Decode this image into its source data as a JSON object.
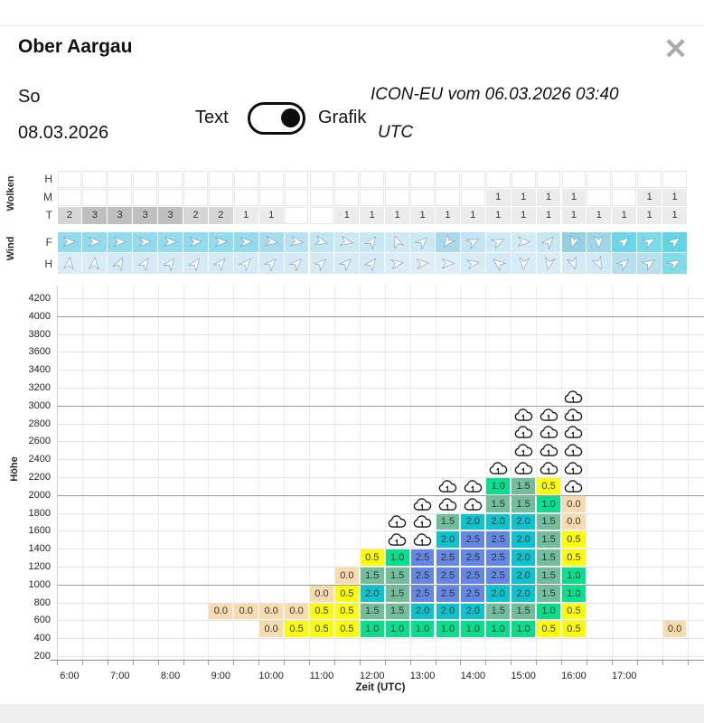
{
  "header": {
    "title": "Ober Aargau",
    "close": "✕"
  },
  "subheader": {
    "day": "So",
    "date": "08.03.2026",
    "toggle_left": "Text",
    "toggle_right": "Grafik",
    "model_line1": "ICON-EU vom 06.03.2026 03:40",
    "model_line2": "UTC"
  },
  "wolken": {
    "label": "Wolken",
    "value_colors": {
      "1": "#ececec",
      "2": "#d6d6d6",
      "3": "#bfbfbf"
    },
    "rows": [
      {
        "label": "H",
        "values": [
          null,
          null,
          null,
          null,
          null,
          null,
          null,
          null,
          null,
          null,
          null,
          null,
          null,
          null,
          null,
          null,
          null,
          null,
          null,
          null,
          null,
          null,
          null,
          null,
          null
        ]
      },
      {
        "label": "M",
        "values": [
          null,
          null,
          null,
          null,
          null,
          null,
          null,
          null,
          null,
          null,
          null,
          null,
          null,
          null,
          null,
          null,
          null,
          1,
          1,
          1,
          1,
          null,
          null,
          1,
          1
        ]
      },
      {
        "label": "T",
        "values": [
          2,
          3,
          3,
          3,
          3,
          2,
          2,
          1,
          1,
          null,
          null,
          1,
          1,
          1,
          1,
          1,
          1,
          1,
          1,
          1,
          1,
          1,
          1,
          1,
          1
        ]
      }
    ]
  },
  "wind": {
    "label": "Wind",
    "rows": [
      {
        "label": "F",
        "cells": [
          {
            "d": 0,
            "c": "#8edcee"
          },
          {
            "d": 0,
            "c": "#8edcee"
          },
          {
            "d": 0,
            "c": "#8edcee"
          },
          {
            "d": 0,
            "c": "#8edcee"
          },
          {
            "d": 0,
            "c": "#8edcee"
          },
          {
            "d": 0,
            "c": "#8edcee"
          },
          {
            "d": 0,
            "c": "#8edcee"
          },
          {
            "d": 0,
            "c": "#8edcee"
          },
          {
            "d": 8,
            "c": "#a6dcef"
          },
          {
            "d": 10,
            "c": "#b7e2f1"
          },
          {
            "d": 14,
            "c": "#c1e6f3"
          },
          {
            "d": 10,
            "c": "#cbe9f5"
          },
          {
            "d": -55,
            "c": "#c6e7f4"
          },
          {
            "d": -110,
            "c": "#cfeaf6"
          },
          {
            "d": -45,
            "c": "#cbe9f5"
          },
          {
            "d": 130,
            "c": "#a9d9ec"
          },
          {
            "d": -30,
            "c": "#c1e5f3"
          },
          {
            "d": -25,
            "c": "#cde9f5"
          },
          {
            "d": 2,
            "c": "#d2ebf6"
          },
          {
            "d": -50,
            "c": "#c6e7f4"
          },
          {
            "d": 105,
            "c": "#93d0e6"
          },
          {
            "d": 85,
            "c": "#9dd5e9"
          },
          {
            "d": -42,
            "c": "#68d7e9"
          },
          {
            "d": -28,
            "c": "#7adbec"
          },
          {
            "d": -38,
            "c": "#5fd5e8"
          }
        ]
      },
      {
        "label": "H",
        "cells": [
          {
            "d": -85,
            "c": "#d9edf8"
          },
          {
            "d": -85,
            "c": "#d9edf8"
          },
          {
            "d": -62,
            "c": "#d4eaf6"
          },
          {
            "d": -57,
            "c": "#d4eaf6"
          },
          {
            "d": -55,
            "c": "#d4eaf6"
          },
          {
            "d": -53,
            "c": "#d4eaf6"
          },
          {
            "d": -50,
            "c": "#d4eaf6"
          },
          {
            "d": -48,
            "c": "#d4eaf6"
          },
          {
            "d": -46,
            "c": "#d4eaf6"
          },
          {
            "d": -45,
            "c": "#d4eaf6"
          },
          {
            "d": -43,
            "c": "#d4eaf6"
          },
          {
            "d": -45,
            "c": "#d6ebf7"
          },
          {
            "d": -52,
            "c": "#d4eaf6"
          },
          {
            "d": -8,
            "c": "#daedf8"
          },
          {
            "d": -5,
            "c": "#ddeef8"
          },
          {
            "d": -2,
            "c": "#ddeef8"
          },
          {
            "d": -12,
            "c": "#d8ecf7"
          },
          {
            "d": -140,
            "c": "#d4eaf6"
          },
          {
            "d": 95,
            "c": "#d8ecf7"
          },
          {
            "d": 102,
            "c": "#d8ecf7"
          },
          {
            "d": 72,
            "c": "#d4eaf6"
          },
          {
            "d": 66,
            "c": "#cfe9f5"
          },
          {
            "d": -40,
            "c": "#b7e1f1"
          },
          {
            "d": -34,
            "c": "#b7e1f1"
          },
          {
            "d": -30,
            "c": "#7edcec"
          }
        ]
      }
    ]
  },
  "chart_data": {
    "type": "heatmap",
    "title": "",
    "xlabel": "Zeit (UTC)",
    "ylabel": "Höhe",
    "x_hour_labels": [
      "6:00",
      "7:00",
      "8:00",
      "9:00",
      "10:00",
      "11:00",
      "12:00",
      "13:00",
      "14:00",
      "15:00",
      "16:00",
      "17:00"
    ],
    "col_times": [
      "6:00",
      "6:30",
      "7:00",
      "7:30",
      "8:00",
      "8:30",
      "9:00",
      "9:30",
      "10:00",
      "10:30",
      "11:00",
      "11:30",
      "12:00",
      "12:30",
      "13:00",
      "13:30",
      "14:00",
      "14:30",
      "15:00",
      "15:30",
      "16:00",
      "16:30",
      "17:00",
      "17:30",
      "18:00"
    ],
    "y_ticks": [
      200,
      400,
      600,
      800,
      1000,
      1200,
      1400,
      1600,
      1800,
      2000,
      2200,
      2400,
      2600,
      2800,
      3000,
      3200,
      3400,
      3600,
      3800,
      4000,
      4200
    ],
    "ylim": [
      200,
      4200
    ],
    "grid": true,
    "value_colors": {
      "0.0": "#f8dcae",
      "0.5": "#fcfc03",
      "1.0": "#06e08c",
      "1.5": "#72bd9c",
      "2.0": "#0cc4cd",
      "2.5": "#6387e2"
    },
    "cloud_symbol": "cloud-with-updraft-icon",
    "bands": [
      {
        "h_low": 3000,
        "cells": [
          {
            "col": 20,
            "cloud": true
          }
        ]
      },
      {
        "h_low": 2800,
        "cells": [
          {
            "col": 18,
            "cloud": true
          },
          {
            "col": 19,
            "cloud": true
          },
          {
            "col": 20,
            "cloud": true
          }
        ]
      },
      {
        "h_low": 2600,
        "cells": [
          {
            "col": 18,
            "cloud": true
          },
          {
            "col": 19,
            "cloud": true
          },
          {
            "col": 20,
            "cloud": true
          }
        ]
      },
      {
        "h_low": 2400,
        "cells": [
          {
            "col": 18,
            "cloud": true
          },
          {
            "col": 19,
            "cloud": true
          },
          {
            "col": 20,
            "cloud": true
          }
        ]
      },
      {
        "h_low": 2200,
        "cells": [
          {
            "col": 17,
            "cloud": true
          },
          {
            "col": 18,
            "cloud": true
          },
          {
            "col": 19,
            "cloud": true
          },
          {
            "col": 20,
            "cloud": true
          }
        ]
      },
      {
        "h_low": 2000,
        "cells": [
          {
            "col": 15,
            "cloud": true
          },
          {
            "col": 16,
            "cloud": true
          },
          {
            "col": 17,
            "v": "1.0"
          },
          {
            "col": 18,
            "v": "1.5"
          },
          {
            "col": 19,
            "v": "0.5"
          },
          {
            "col": 20,
            "cloud": true
          }
        ]
      },
      {
        "h_low": 1800,
        "cells": [
          {
            "col": 14,
            "cloud": true
          },
          {
            "col": 15,
            "cloud": true
          },
          {
            "col": 16,
            "cloud": true
          },
          {
            "col": 17,
            "v": "1.5"
          },
          {
            "col": 18,
            "v": "1.5"
          },
          {
            "col": 19,
            "v": "1.0"
          },
          {
            "col": 20,
            "v": "0.0"
          }
        ]
      },
      {
        "h_low": 1600,
        "cells": [
          {
            "col": 13,
            "cloud": true
          },
          {
            "col": 14,
            "cloud": true
          },
          {
            "col": 15,
            "v": "1.5"
          },
          {
            "col": 16,
            "v": "2.0"
          },
          {
            "col": 17,
            "v": "2.0"
          },
          {
            "col": 18,
            "v": "2.0"
          },
          {
            "col": 19,
            "v": "1.5"
          },
          {
            "col": 20,
            "v": "0.0"
          }
        ]
      },
      {
        "h_low": 1400,
        "cells": [
          {
            "col": 13,
            "cloud": true
          },
          {
            "col": 14,
            "cloud": true
          },
          {
            "col": 15,
            "v": "2.0"
          },
          {
            "col": 16,
            "v": "2.5"
          },
          {
            "col": 17,
            "v": "2.5"
          },
          {
            "col": 18,
            "v": "2.0"
          },
          {
            "col": 19,
            "v": "1.5"
          },
          {
            "col": 20,
            "v": "0.5"
          }
        ]
      },
      {
        "h_low": 1200,
        "cells": [
          {
            "col": 12,
            "v": "0.5"
          },
          {
            "col": 13,
            "v": "1.0"
          },
          {
            "col": 14,
            "v": "2.5"
          },
          {
            "col": 15,
            "v": "2.5"
          },
          {
            "col": 16,
            "v": "2.5"
          },
          {
            "col": 17,
            "v": "2.5"
          },
          {
            "col": 18,
            "v": "2.0"
          },
          {
            "col": 19,
            "v": "1.5"
          },
          {
            "col": 20,
            "v": "0.5"
          }
        ]
      },
      {
        "h_low": 1000,
        "cells": [
          {
            "col": 11,
            "v": "0.0"
          },
          {
            "col": 12,
            "v": "1.5"
          },
          {
            "col": 13,
            "v": "1.5"
          },
          {
            "col": 14,
            "v": "2.5"
          },
          {
            "col": 15,
            "v": "2.5"
          },
          {
            "col": 16,
            "v": "2.5"
          },
          {
            "col": 17,
            "v": "2.5"
          },
          {
            "col": 18,
            "v": "2.0"
          },
          {
            "col": 19,
            "v": "1.5"
          },
          {
            "col": 20,
            "v": "1.0"
          }
        ]
      },
      {
        "h_low": 800,
        "cells": [
          {
            "col": 10,
            "v": "0.0"
          },
          {
            "col": 11,
            "v": "0.5"
          },
          {
            "col": 12,
            "v": "2.0"
          },
          {
            "col": 13,
            "v": "1.5"
          },
          {
            "col": 14,
            "v": "2.5"
          },
          {
            "col": 15,
            "v": "2.5"
          },
          {
            "col": 16,
            "v": "2.5"
          },
          {
            "col": 17,
            "v": "2.0"
          },
          {
            "col": 18,
            "v": "2.0"
          },
          {
            "col": 19,
            "v": "1.5"
          },
          {
            "col": 20,
            "v": "1.0"
          }
        ]
      },
      {
        "h_low": 600,
        "cells": [
          {
            "col": 6,
            "v": "0.0"
          },
          {
            "col": 7,
            "v": "0.0"
          },
          {
            "col": 8,
            "v": "0.0"
          },
          {
            "col": 9,
            "v": "0.0"
          },
          {
            "col": 10,
            "v": "0.5"
          },
          {
            "col": 11,
            "v": "0.5"
          },
          {
            "col": 12,
            "v": "1.5"
          },
          {
            "col": 13,
            "v": "1.5"
          },
          {
            "col": 14,
            "v": "2.0"
          },
          {
            "col": 15,
            "v": "2.0"
          },
          {
            "col": 16,
            "v": "2.0"
          },
          {
            "col": 17,
            "v": "1.5"
          },
          {
            "col": 18,
            "v": "1.5"
          },
          {
            "col": 19,
            "v": "1.0"
          },
          {
            "col": 20,
            "v": "0.5"
          }
        ]
      },
      {
        "h_low": 400,
        "cells": [
          {
            "col": 8,
            "v": "0.0"
          },
          {
            "col": 9,
            "v": "0.5"
          },
          {
            "col": 10,
            "v": "0.5"
          },
          {
            "col": 11,
            "v": "0.5"
          },
          {
            "col": 12,
            "v": "1.0"
          },
          {
            "col": 13,
            "v": "1.0"
          },
          {
            "col": 14,
            "v": "1.0"
          },
          {
            "col": 15,
            "v": "1.0"
          },
          {
            "col": 16,
            "v": "1.0"
          },
          {
            "col": 17,
            "v": "1.0"
          },
          {
            "col": 18,
            "v": "1.0"
          },
          {
            "col": 19,
            "v": "0.5"
          },
          {
            "col": 20,
            "v": "0.5"
          },
          {
            "col": 24,
            "v": "0.0"
          }
        ]
      }
    ]
  }
}
